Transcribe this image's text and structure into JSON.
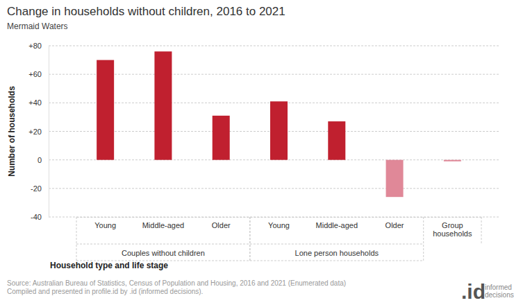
{
  "chart_data": {
    "type": "bar",
    "title": "Change in households without children, 2016 to 2021",
    "subtitle": "Mermaid Waters",
    "y_label": "Number of households",
    "x_label": "Household type and life stage",
    "categories": [
      "Young",
      "Middle-aged",
      "Older",
      "Young",
      "Middle-aged",
      "Older",
      "Group households"
    ],
    "values": [
      70,
      76,
      31,
      41,
      27,
      -26,
      -1
    ],
    "colors": [
      "#c0202f",
      "#c0202f",
      "#c0202f",
      "#c0202f",
      "#c0202f",
      "#e08898",
      "#e08898"
    ],
    "groups": [
      {
        "label": "Couples without children",
        "count": 3
      },
      {
        "label": "Lone person households",
        "count": 3
      }
    ],
    "ylim": [
      -40,
      80
    ],
    "yticks": [
      {
        "value": 80,
        "label": "+80"
      },
      {
        "value": 60,
        "label": "+60"
      },
      {
        "value": 40,
        "label": "+40"
      },
      {
        "value": 20,
        "label": "+20"
      },
      0,
      -20,
      -40
    ],
    "grid": true,
    "source": [
      "Source: Australian Bureau of Statistics, Census of Population and Housing, 2016 and 2021 (Enumerated data)",
      "Compiled and presented in profile.id by .id (informed decisions)."
    ],
    "logo": {
      "mark": ".id",
      "text": [
        "informed",
        "decisions"
      ]
    }
  }
}
